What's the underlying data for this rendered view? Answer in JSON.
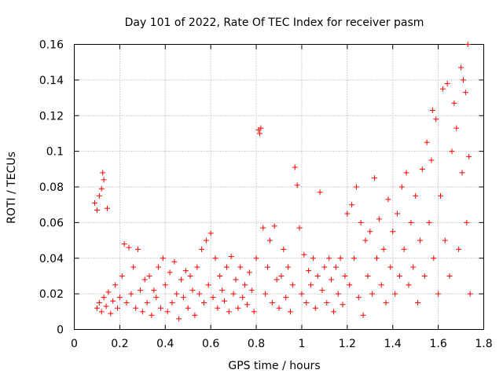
{
  "chart_data": {
    "type": "scatter",
    "title": "Day 101 of 2022, Rate Of TEC Index for receiver pasm",
    "xlabel": "GPS time / hours",
    "ylabel": "ROTI / TECUs",
    "xlim": [
      0,
      1.8
    ],
    "ylim": [
      0,
      0.16
    ],
    "xticks": [
      "0",
      "0.2",
      "0.4",
      "0.6",
      "0.8",
      "1",
      "1.2",
      "1.4",
      "1.6",
      "1.8"
    ],
    "yticks": [
      "0",
      "0.02",
      "0.04",
      "0.06",
      "0.08",
      "0.1",
      "0.12",
      "0.14",
      "0.16"
    ],
    "xtick_values": [
      0,
      0.2,
      0.4,
      0.6,
      0.8,
      1.0,
      1.2,
      1.4,
      1.6,
      1.8
    ],
    "ytick_values": [
      0,
      0.02,
      0.04,
      0.06,
      0.08,
      0.1,
      0.12,
      0.14,
      0.16
    ],
    "grid": true,
    "marker": "+",
    "color": "#ff0000",
    "series": [
      {
        "name": "ROTI",
        "points": [
          [
            0.09,
            0.071
          ],
          [
            0.1,
            0.067
          ],
          [
            0.11,
            0.075
          ],
          [
            0.12,
            0.079
          ],
          [
            0.125,
            0.088
          ],
          [
            0.13,
            0.084
          ],
          [
            0.145,
            0.068
          ],
          [
            0.1,
            0.012
          ],
          [
            0.11,
            0.015
          ],
          [
            0.12,
            0.01
          ],
          [
            0.13,
            0.018
          ],
          [
            0.14,
            0.013
          ],
          [
            0.15,
            0.021
          ],
          [
            0.16,
            0.009
          ],
          [
            0.17,
            0.016
          ],
          [
            0.18,
            0.025
          ],
          [
            0.19,
            0.012
          ],
          [
            0.2,
            0.018
          ],
          [
            0.21,
            0.03
          ],
          [
            0.22,
            0.048
          ],
          [
            0.23,
            0.015
          ],
          [
            0.24,
            0.046
          ],
          [
            0.25,
            0.02
          ],
          [
            0.26,
            0.035
          ],
          [
            0.27,
            0.012
          ],
          [
            0.28,
            0.045
          ],
          [
            0.29,
            0.022
          ],
          [
            0.3,
            0.01
          ],
          [
            0.31,
            0.028
          ],
          [
            0.32,
            0.015
          ],
          [
            0.33,
            0.03
          ],
          [
            0.34,
            0.008
          ],
          [
            0.35,
            0.022
          ],
          [
            0.36,
            0.018
          ],
          [
            0.37,
            0.035
          ],
          [
            0.38,
            0.012
          ],
          [
            0.39,
            0.04
          ],
          [
            0.4,
            0.025
          ],
          [
            0.41,
            0.01
          ],
          [
            0.42,
            0.032
          ],
          [
            0.43,
            0.015
          ],
          [
            0.44,
            0.038
          ],
          [
            0.45,
            0.02
          ],
          [
            0.46,
            0.006
          ],
          [
            0.47,
            0.028
          ],
          [
            0.48,
            0.018
          ],
          [
            0.49,
            0.033
          ],
          [
            0.5,
            0.012
          ],
          [
            0.51,
            0.03
          ],
          [
            0.52,
            0.022
          ],
          [
            0.53,
            0.008
          ],
          [
            0.54,
            0.035
          ],
          [
            0.55,
            0.02
          ],
          [
            0.56,
            0.045
          ],
          [
            0.57,
            0.015
          ],
          [
            0.58,
            0.05
          ],
          [
            0.59,
            0.025
          ],
          [
            0.6,
            0.054
          ],
          [
            0.61,
            0.018
          ],
          [
            0.62,
            0.04
          ],
          [
            0.63,
            0.012
          ],
          [
            0.64,
            0.03
          ],
          [
            0.65,
            0.022
          ],
          [
            0.66,
            0.016
          ],
          [
            0.67,
            0.035
          ],
          [
            0.68,
            0.01
          ],
          [
            0.69,
            0.041
          ],
          [
            0.7,
            0.02
          ],
          [
            0.71,
            0.028
          ],
          [
            0.72,
            0.012
          ],
          [
            0.73,
            0.035
          ],
          [
            0.74,
            0.018
          ],
          [
            0.75,
            0.025
          ],
          [
            0.76,
            0.014
          ],
          [
            0.77,
            0.032
          ],
          [
            0.78,
            0.022
          ],
          [
            0.79,
            0.01
          ],
          [
            0.8,
            0.04
          ],
          [
            0.81,
            0.112
          ],
          [
            0.815,
            0.11
          ],
          [
            0.82,
            0.113
          ],
          [
            0.83,
            0.057
          ],
          [
            0.84,
            0.02
          ],
          [
            0.85,
            0.035
          ],
          [
            0.86,
            0.05
          ],
          [
            0.87,
            0.015
          ],
          [
            0.88,
            0.058
          ],
          [
            0.89,
            0.028
          ],
          [
            0.9,
            0.012
          ],
          [
            0.91,
            0.03
          ],
          [
            0.92,
            0.045
          ],
          [
            0.93,
            0.018
          ],
          [
            0.94,
            0.035
          ],
          [
            0.95,
            0.01
          ],
          [
            0.96,
            0.025
          ],
          [
            0.97,
            0.091
          ],
          [
            0.98,
            0.081
          ],
          [
            0.99,
            0.057
          ],
          [
            1.0,
            0.02
          ],
          [
            1.01,
            0.042
          ],
          [
            1.02,
            0.015
          ],
          [
            1.03,
            0.033
          ],
          [
            1.04,
            0.025
          ],
          [
            1.05,
            0.04
          ],
          [
            1.06,
            0.012
          ],
          [
            1.07,
            0.03
          ],
          [
            1.08,
            0.077
          ],
          [
            1.09,
            0.022
          ],
          [
            1.1,
            0.035
          ],
          [
            1.11,
            0.015
          ],
          [
            1.12,
            0.04
          ],
          [
            1.13,
            0.028
          ],
          [
            1.14,
            0.01
          ],
          [
            1.15,
            0.035
          ],
          [
            1.16,
            0.02
          ],
          [
            1.17,
            0.04
          ],
          [
            1.18,
            0.014
          ],
          [
            1.19,
            0.03
          ],
          [
            1.2,
            0.065
          ],
          [
            1.21,
            0.025
          ],
          [
            1.22,
            0.07
          ],
          [
            1.23,
            0.04
          ],
          [
            1.24,
            0.08
          ],
          [
            1.25,
            0.018
          ],
          [
            1.26,
            0.06
          ],
          [
            1.27,
            0.008
          ],
          [
            1.28,
            0.05
          ],
          [
            1.29,
            0.03
          ],
          [
            1.3,
            0.055
          ],
          [
            1.31,
            0.02
          ],
          [
            1.32,
            0.085
          ],
          [
            1.33,
            0.04
          ],
          [
            1.34,
            0.062
          ],
          [
            1.35,
            0.025
          ],
          [
            1.36,
            0.045
          ],
          [
            1.37,
            0.015
          ],
          [
            1.38,
            0.073
          ],
          [
            1.39,
            0.035
          ],
          [
            1.4,
            0.055
          ],
          [
            1.41,
            0.02
          ],
          [
            1.42,
            0.065
          ],
          [
            1.43,
            0.03
          ],
          [
            1.44,
            0.08
          ],
          [
            1.45,
            0.045
          ],
          [
            1.46,
            0.088
          ],
          [
            1.47,
            0.025
          ],
          [
            1.48,
            0.06
          ],
          [
            1.49,
            0.035
          ],
          [
            1.5,
            0.075
          ],
          [
            1.51,
            0.015
          ],
          [
            1.52,
            0.05
          ],
          [
            1.53,
            0.09
          ],
          [
            1.54,
            0.03
          ],
          [
            1.55,
            0.105
          ],
          [
            1.56,
            0.06
          ],
          [
            1.57,
            0.095
          ],
          [
            1.575,
            0.123
          ],
          [
            1.58,
            0.04
          ],
          [
            1.59,
            0.118
          ],
          [
            1.6,
            0.02
          ],
          [
            1.61,
            0.075
          ],
          [
            1.62,
            0.135
          ],
          [
            1.63,
            0.05
          ],
          [
            1.64,
            0.138
          ],
          [
            1.65,
            0.03
          ],
          [
            1.66,
            0.1
          ],
          [
            1.67,
            0.127
          ],
          [
            1.68,
            0.113
          ],
          [
            1.69,
            0.045
          ],
          [
            1.7,
            0.147
          ],
          [
            1.705,
            0.088
          ],
          [
            1.71,
            0.14
          ],
          [
            1.72,
            0.133
          ],
          [
            1.725,
            0.06
          ],
          [
            1.73,
            0.16
          ],
          [
            1.735,
            0.097
          ],
          [
            1.74,
            0.02
          ]
        ]
      }
    ]
  }
}
